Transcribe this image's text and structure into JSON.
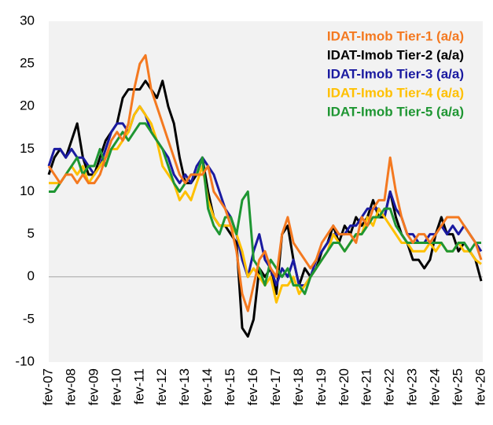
{
  "chart_data": {
    "type": "line",
    "categories": [
      "fev-07",
      null,
      null,
      null,
      "fev-08",
      null,
      null,
      null,
      "fev-09",
      null,
      null,
      null,
      "fev-10",
      null,
      null,
      null,
      "fev-11",
      null,
      null,
      null,
      "fev-12",
      null,
      null,
      null,
      "fev-13",
      null,
      null,
      null,
      "fev-14",
      null,
      null,
      null,
      "fev-15",
      null,
      null,
      null,
      "fev-16",
      null,
      null,
      null,
      "fev-17",
      null,
      null,
      null,
      "fev-18",
      null,
      null,
      null,
      "fev-19",
      null,
      null,
      null,
      "fev-20",
      null,
      null,
      null,
      "fev-21",
      null,
      null,
      null,
      "fev-22",
      null,
      null,
      null,
      "fev-23",
      null,
      null,
      null,
      "fev-24",
      null,
      null,
      null,
      "fev-25",
      null,
      null,
      null,
      "fev-26"
    ],
    "series": [
      {
        "name": "IDAT-Imob Tier-1 (a/a)",
        "color": "#f47920",
        "values": [
          13,
          12,
          11,
          12,
          12,
          11,
          12,
          11,
          11,
          12,
          14,
          16,
          17,
          16,
          18,
          22,
          25,
          26,
          22,
          20,
          18,
          16,
          14,
          12,
          11,
          12,
          12,
          12,
          13,
          10,
          9,
          8,
          6,
          3,
          -2,
          -4,
          -1,
          2,
          3,
          1,
          0,
          5,
          7,
          4,
          3,
          2,
          1,
          2,
          4,
          5,
          6,
          5,
          5,
          5,
          4,
          7,
          6,
          8,
          9,
          9,
          14,
          10,
          7,
          5,
          4,
          5,
          5,
          4,
          5,
          6,
          7,
          7,
          7,
          6,
          5,
          4,
          2
        ]
      },
      {
        "name": "IDAT-Imob Tier-2 (a/a)",
        "color": "#000000",
        "values": [
          12,
          14,
          15,
          14,
          16,
          18,
          14,
          12,
          12,
          14,
          16,
          17,
          18,
          21,
          22,
          22,
          22,
          23,
          22,
          21,
          23,
          20,
          18,
          14,
          11,
          11,
          12,
          14,
          10,
          7,
          6,
          6,
          5,
          4,
          -6,
          -7,
          -5,
          1,
          0,
          1,
          -2,
          5,
          6,
          2,
          -1,
          1,
          0,
          1,
          3,
          4,
          6,
          4,
          6,
          5,
          7,
          6,
          7,
          9,
          7,
          7,
          10,
          7,
          5,
          4,
          2,
          2,
          1,
          2,
          5,
          7,
          5,
          5,
          3,
          4,
          3,
          2,
          -0.5
        ]
      },
      {
        "name": "IDAT-Imob Tier-3 (a/a)",
        "color": "#1a1aa0",
        "values": [
          13,
          15,
          15,
          14,
          15,
          14,
          14,
          13,
          12,
          13,
          15,
          17,
          18,
          18,
          17,
          19,
          20,
          19,
          17,
          16,
          15,
          14,
          12,
          11,
          12,
          11,
          13,
          14,
          13,
          12,
          10,
          8,
          7,
          5,
          2,
          0,
          3,
          5,
          2,
          1,
          -1,
          1,
          0,
          2,
          -1,
          -1,
          0,
          2,
          3,
          4,
          5,
          5,
          5,
          6,
          6,
          7,
          8,
          8,
          8,
          7,
          10,
          8,
          7,
          5,
          5,
          4,
          4,
          5,
          5,
          6,
          5,
          6,
          5,
          6,
          5,
          4,
          3
        ]
      },
      {
        "name": "IDAT-Imob Tier-4 (a/a)",
        "color": "#ffc000",
        "values": [
          11,
          11,
          11,
          12,
          13,
          12,
          13,
          11,
          12,
          13,
          14,
          15,
          15,
          16,
          17,
          19,
          20,
          19,
          18,
          16,
          13,
          12,
          11,
          9,
          10,
          9,
          11,
          13,
          9,
          7,
          6,
          6,
          6,
          5,
          3,
          0,
          1,
          0,
          -1,
          0,
          -3,
          -1,
          -1,
          0,
          -2,
          -1,
          0,
          1,
          2,
          3,
          5,
          4,
          3,
          4,
          5,
          5,
          7,
          6,
          8,
          7,
          6,
          5,
          4,
          4,
          3,
          3,
          3,
          4,
          3,
          4,
          3,
          3,
          4,
          3,
          3,
          2,
          1.5
        ]
      },
      {
        "name": "IDAT-Imob Tier-5 (a/a)",
        "color": "#1e9632",
        "values": [
          10,
          10,
          11,
          12,
          13,
          14,
          12,
          13,
          13,
          15,
          13,
          15,
          16,
          17,
          16,
          17,
          18,
          18,
          17,
          16,
          15,
          13,
          11,
          10,
          11,
          12,
          12,
          14,
          8,
          6,
          5,
          7,
          7,
          5,
          9,
          10,
          2,
          1,
          -1,
          2,
          1,
          0,
          1,
          -1,
          -1,
          -2,
          0,
          1,
          2,
          3,
          4,
          4,
          3,
          4,
          5,
          5,
          6,
          7,
          7,
          8,
          8,
          6,
          5,
          4,
          4,
          4,
          4,
          4,
          4,
          4,
          3,
          3,
          4,
          4,
          3,
          4,
          4
        ]
      }
    ],
    "ylim": [
      -10,
      30
    ],
    "yticks": [
      -10,
      -5,
      0,
      5,
      10,
      15,
      20,
      25,
      30
    ]
  }
}
